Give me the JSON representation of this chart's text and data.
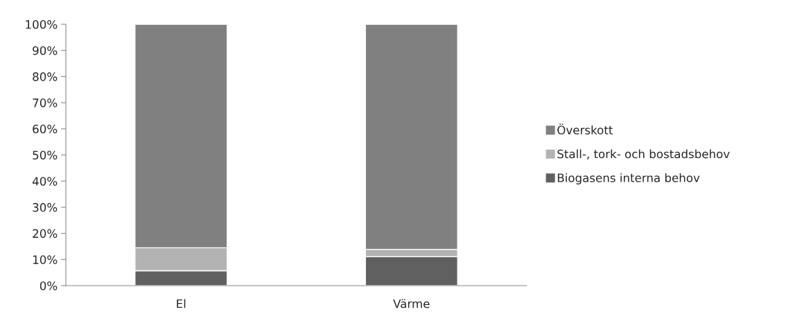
{
  "chart_data": {
    "type": "bar",
    "stacked": true,
    "categories": [
      "El",
      "Värme"
    ],
    "series": [
      {
        "name": "Biogasens interna behov",
        "color": "#606060",
        "values": [
          5.7,
          11.1
        ]
      },
      {
        "name": "Stall-, tork- och bostadsbehov",
        "color": "#b3b3b3",
        "values": [
          8.8,
          2.8
        ]
      },
      {
        "name": "Överskott",
        "color": "#808080",
        "values": [
          85.5,
          86.1
        ]
      }
    ],
    "ylim": [
      0,
      100
    ],
    "yticks": [
      {
        "value": 0,
        "label": "0%"
      },
      {
        "value": 10,
        "label": "10%"
      },
      {
        "value": 20,
        "label": "20%"
      },
      {
        "value": 30,
        "label": "30%"
      },
      {
        "value": 40,
        "label": "40%"
      },
      {
        "value": 50,
        "label": "50%"
      },
      {
        "value": 60,
        "label": "60%"
      },
      {
        "value": 70,
        "label": "70%"
      },
      {
        "value": 80,
        "label": "80%"
      },
      {
        "value": 90,
        "label": "90%"
      },
      {
        "value": 100,
        "label": "100%"
      }
    ],
    "grid": false,
    "legend": "right"
  }
}
